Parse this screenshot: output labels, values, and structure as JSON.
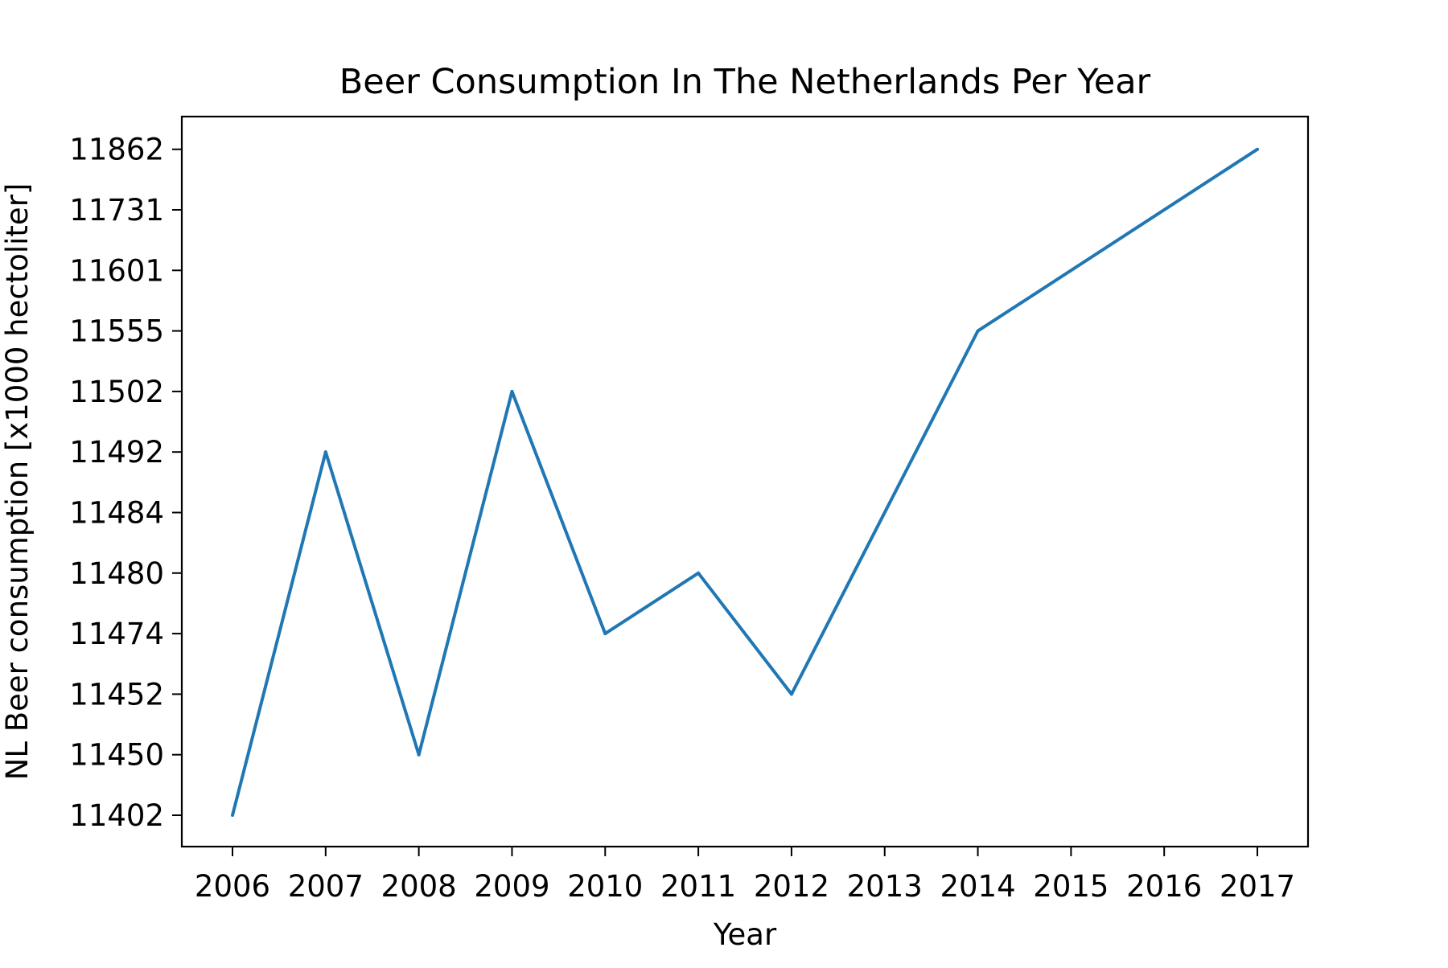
{
  "chart_data": {
    "type": "line",
    "title": "Beer Consumption In The Netherlands Per Year",
    "xlabel": "Year",
    "ylabel": "NL Beer consumption [x1000 hectoliter]",
    "x_ticks": [
      "2006",
      "2007",
      "2008",
      "2009",
      "2010",
      "2011",
      "2012",
      "2013",
      "2014",
      "2015",
      "2016",
      "2017"
    ],
    "y_ticks": [
      "11402",
      "11450",
      "11452",
      "11474",
      "11480",
      "11484",
      "11492",
      "11502",
      "11555",
      "11601",
      "11731",
      "11862"
    ],
    "y_axis_note": "categorical y-axis: sorted values spaced evenly",
    "series": [
      {
        "name": "beer consumption",
        "color": "#1f77b4",
        "points": [
          {
            "x": "2006",
            "y": "11402"
          },
          {
            "x": "2007",
            "y": "11492"
          },
          {
            "x": "2008",
            "y": "11450"
          },
          {
            "x": "2009",
            "y": "11502"
          },
          {
            "x": "2010",
            "y": "11474"
          },
          {
            "x": "2011",
            "y": "11480"
          },
          {
            "x": "2012",
            "y": "11452"
          },
          {
            "x": "2014",
            "y": "11555"
          },
          {
            "x": "2017",
            "y": "11862"
          }
        ]
      }
    ],
    "grid": false,
    "legend": "none"
  }
}
